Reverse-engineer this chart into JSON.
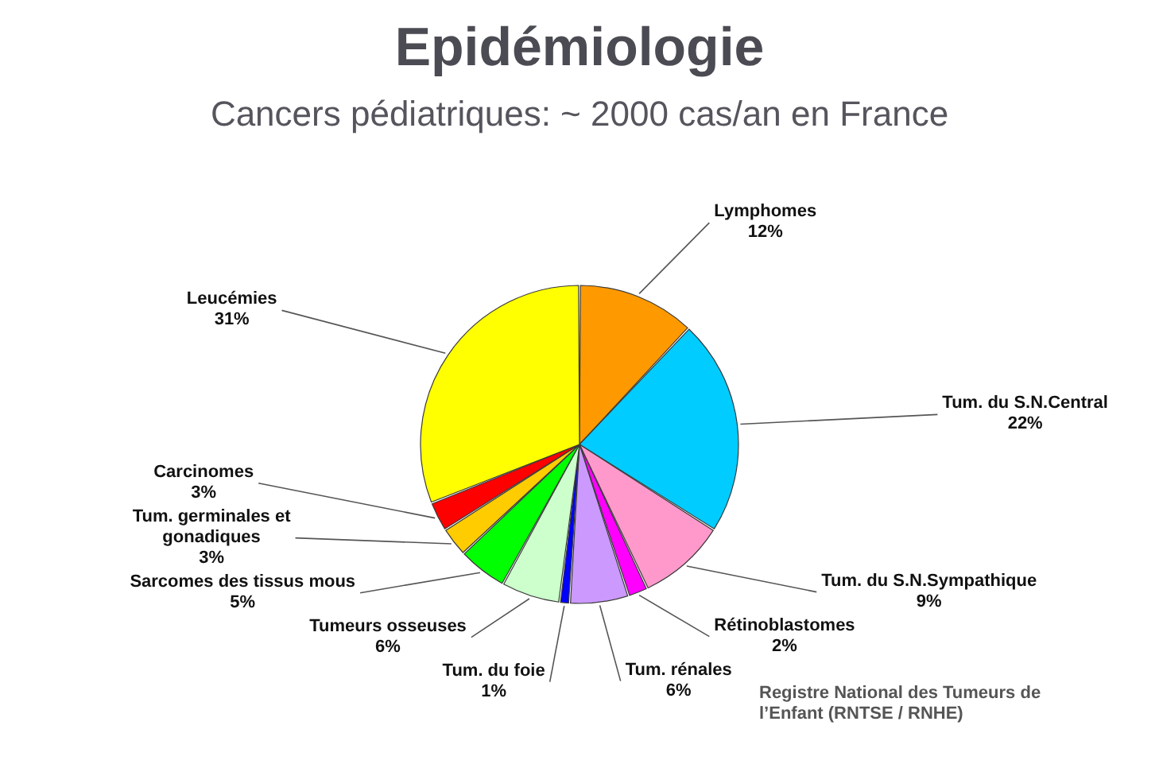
{
  "chart_data": {
    "type": "pie",
    "title": "Epidémiologie",
    "subtitle": "Cancers pédiatriques: ~ 2000 cas/an en France",
    "categories": [
      "Lymphomes",
      "Tum. du S.N.Central",
      "Tum. du S.N.Sympathique",
      "Rétinoblastomes",
      "Tum. rénales",
      "Tum. du foie",
      "Tumeurs osseuses",
      "Sarcomes des tissus mous",
      "Tum. germinales et gonadiques",
      "Carcinomes",
      "Leucémies"
    ],
    "values": [
      12,
      22,
      9,
      2,
      6,
      1,
      6,
      5,
      3,
      3,
      31
    ],
    "value_labels": [
      "12%",
      "22%",
      "9%",
      "2%",
      "6%",
      "1%",
      "6%",
      "5%",
      "3%",
      "3%",
      "31%"
    ],
    "colors": [
      "#ff9900",
      "#00ccff",
      "#ff99cc",
      "#ff00ff",
      "#cc99ff",
      "#0000ff",
      "#ccffcc",
      "#00ff00",
      "#ffcc00",
      "#ff0000",
      "#ffff00"
    ],
    "annotations": [
      "Registre National des Tumeurs de l’Enfant (RNTSE / RNHE)"
    ]
  }
}
